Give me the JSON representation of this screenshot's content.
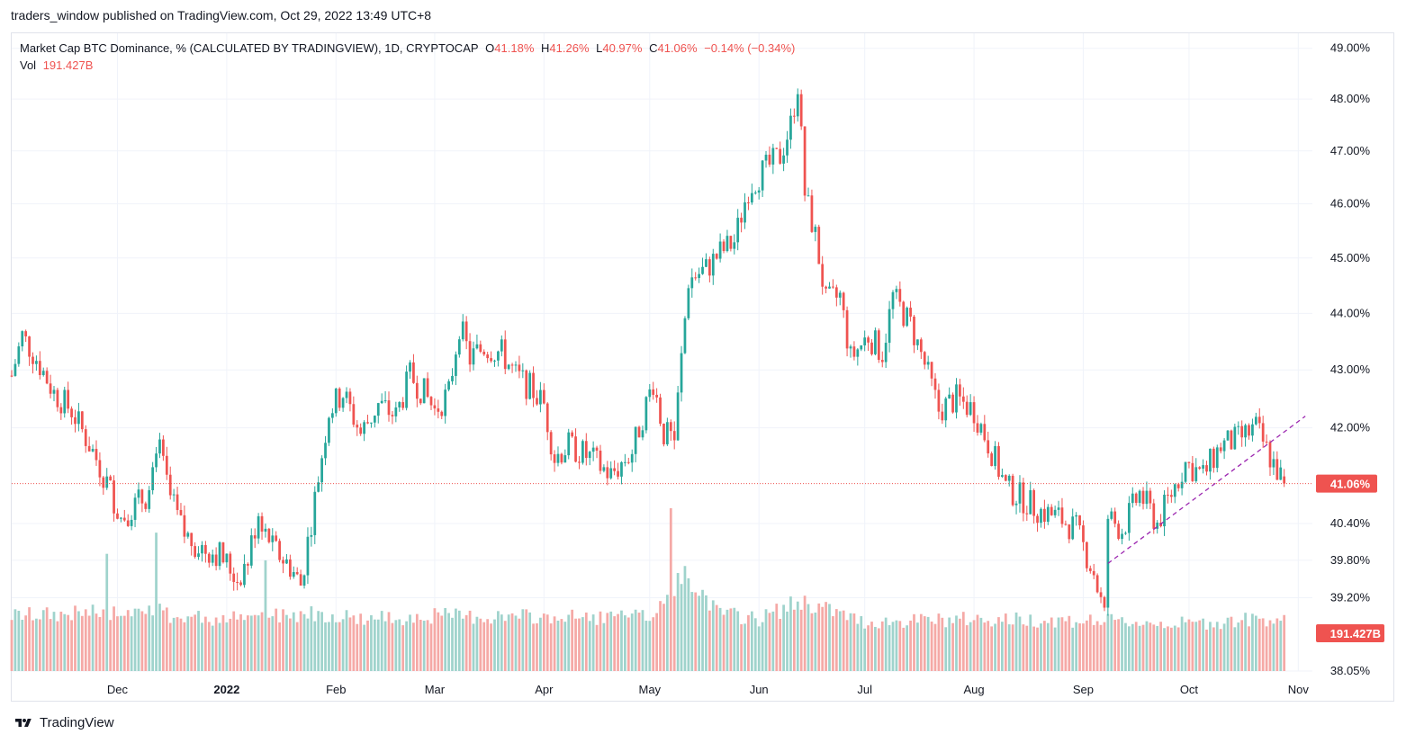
{
  "header": {
    "published": "traders_window published on TradingView.com, Oct 29, 2022 13:49 UTC+8"
  },
  "legend": {
    "symbol": "Market Cap BTC Dominance, % (CALCULATED BY TRADINGVIEW), 1D, CRYPTOCAP",
    "o_label": "O",
    "o_value": "41.18%",
    "h_label": "H",
    "h_value": "41.26%",
    "l_label": "L",
    "l_value": "40.97%",
    "c_label": "C",
    "c_value": "41.06%",
    "change": "−0.14% (−0.34%)",
    "vol_label": "Vol",
    "vol_value": "191.427B"
  },
  "brand": {
    "name": "TradingView"
  },
  "colors": {
    "up": "#26a69a",
    "down": "#ef5350",
    "up_vol": "#9fd3cc",
    "down_vol": "#f5a9a6",
    "trend": "#9c27b0",
    "grid": "#f0f3fa"
  },
  "chart_data": {
    "type": "candlestick",
    "y_scale": "log",
    "ylim": [
      38.05,
      49.3
    ],
    "y_ticks": [
      {
        "value": 49.0,
        "label": "49.00%"
      },
      {
        "value": 48.0,
        "label": "48.00%"
      },
      {
        "value": 47.0,
        "label": "47.00%"
      },
      {
        "value": 46.0,
        "label": "46.00%"
      },
      {
        "value": 45.0,
        "label": "45.00%"
      },
      {
        "value": 44.0,
        "label": "44.00%"
      },
      {
        "value": 43.0,
        "label": "43.00%"
      },
      {
        "value": 42.0,
        "label": "42.00%"
      },
      {
        "value": 40.4,
        "label": "40.40%"
      },
      {
        "value": 39.8,
        "label": "39.80%"
      },
      {
        "value": 39.2,
        "label": "39.20%"
      },
      {
        "value": 38.05,
        "label": "38.05%"
      }
    ],
    "x_ticks": [
      {
        "label": "Dec",
        "date": "2021-12-01",
        "bold": false
      },
      {
        "label": "2022",
        "date": "2022-01-01",
        "bold": true
      },
      {
        "label": "Feb",
        "date": "2022-02-01",
        "bold": false
      },
      {
        "label": "Mar",
        "date": "2022-03-01",
        "bold": false
      },
      {
        "label": "Apr",
        "date": "2022-04-01",
        "bold": false
      },
      {
        "label": "May",
        "date": "2022-05-01",
        "bold": false
      },
      {
        "label": "Jun",
        "date": "2022-06-01",
        "bold": false
      },
      {
        "label": "Jul",
        "date": "2022-07-01",
        "bold": false
      },
      {
        "label": "Aug",
        "date": "2022-08-01",
        "bold": false
      },
      {
        "label": "Sep",
        "date": "2022-09-01",
        "bold": false
      },
      {
        "label": "Oct",
        "date": "2022-10-01",
        "bold": false
      },
      {
        "label": "Nov",
        "date": "2022-11-01",
        "bold": false
      }
    ],
    "close_path": [
      [
        "2021-11-01",
        42.9
      ],
      [
        "2021-11-04",
        43.6
      ],
      [
        "2021-11-08",
        43.2
      ],
      [
        "2021-11-13",
        42.6
      ],
      [
        "2021-11-18",
        42.3
      ],
      [
        "2021-11-24",
        41.6
      ],
      [
        "2021-11-28",
        41.1
      ],
      [
        "2021-12-02",
        40.5
      ],
      [
        "2021-12-06",
        40.7
      ],
      [
        "2021-12-10",
        40.9
      ],
      [
        "2021-12-13",
        41.6
      ],
      [
        "2021-12-16",
        40.8
      ],
      [
        "2021-12-20",
        40.2
      ],
      [
        "2021-12-25",
        40.0
      ],
      [
        "2021-12-30",
        39.9
      ],
      [
        "2022-01-04",
        39.5
      ],
      [
        "2022-01-07",
        39.8
      ],
      [
        "2022-01-10",
        40.6
      ],
      [
        "2022-01-14",
        40.0
      ],
      [
        "2022-01-19",
        39.7
      ],
      [
        "2022-01-22",
        39.4
      ],
      [
        "2022-01-26",
        40.8
      ],
      [
        "2022-01-30",
        42.3
      ],
      [
        "2022-02-03",
        42.6
      ],
      [
        "2022-02-08",
        41.9
      ],
      [
        "2022-02-13",
        42.4
      ],
      [
        "2022-02-18",
        42.2
      ],
      [
        "2022-02-22",
        42.9
      ],
      [
        "2022-02-26",
        42.6
      ],
      [
        "2022-03-01",
        42.3
      ],
      [
        "2022-03-05",
        42.6
      ],
      [
        "2022-03-08",
        43.8
      ],
      [
        "2022-03-11",
        43.2
      ],
      [
        "2022-03-15",
        43.4
      ],
      [
        "2022-03-20",
        43.3
      ],
      [
        "2022-03-24",
        42.9
      ],
      [
        "2022-03-28",
        42.7
      ],
      [
        "2022-04-01",
        42.4
      ],
      [
        "2022-04-04",
        41.5
      ],
      [
        "2022-04-08",
        41.7
      ],
      [
        "2022-04-14",
        41.5
      ],
      [
        "2022-04-20",
        41.2
      ],
      [
        "2022-04-26",
        41.6
      ],
      [
        "2022-04-30",
        42.4
      ],
      [
        "2022-05-02",
        42.8
      ],
      [
        "2022-05-05",
        41.9
      ],
      [
        "2022-05-08",
        41.8
      ],
      [
        "2022-05-10",
        43.2
      ],
      [
        "2022-05-12",
        44.6
      ],
      [
        "2022-05-17",
        44.8
      ],
      [
        "2022-05-21",
        45.1
      ],
      [
        "2022-05-25",
        45.3
      ],
      [
        "2022-05-29",
        46.3
      ],
      [
        "2022-06-02",
        46.6
      ],
      [
        "2022-06-07",
        46.9
      ],
      [
        "2022-06-10",
        47.5
      ],
      [
        "2022-06-12",
        48.3
      ],
      [
        "2022-06-14",
        46.2
      ],
      [
        "2022-06-17",
        45.4
      ],
      [
        "2022-06-20",
        44.2
      ],
      [
        "2022-06-24",
        44.3
      ],
      [
        "2022-06-27",
        43.2
      ],
      [
        "2022-07-02",
        43.6
      ],
      [
        "2022-07-06",
        43.3
      ],
      [
        "2022-07-09",
        44.3
      ],
      [
        "2022-07-14",
        43.8
      ],
      [
        "2022-07-18",
        43.1
      ],
      [
        "2022-07-22",
        42.3
      ],
      [
        "2022-07-27",
        42.5
      ],
      [
        "2022-08-01",
        42.3
      ],
      [
        "2022-08-06",
        41.6
      ],
      [
        "2022-08-10",
        41.0
      ],
      [
        "2022-08-15",
        40.8
      ],
      [
        "2022-08-20",
        40.6
      ],
      [
        "2022-08-25",
        40.5
      ],
      [
        "2022-08-30",
        40.3
      ],
      [
        "2022-09-04",
        39.6
      ],
      [
        "2022-09-07",
        38.9
      ],
      [
        "2022-09-08",
        40.5
      ],
      [
        "2022-09-12",
        40.3
      ],
      [
        "2022-09-17",
        40.9
      ],
      [
        "2022-09-22",
        40.4
      ],
      [
        "2022-09-26",
        40.9
      ],
      [
        "2022-09-30",
        41.4
      ],
      [
        "2022-10-05",
        41.2
      ],
      [
        "2022-10-10",
        41.7
      ],
      [
        "2022-10-15",
        41.8
      ],
      [
        "2022-10-20",
        42.0
      ],
      [
        "2022-10-24",
        41.5
      ],
      [
        "2022-10-28",
        41.06
      ]
    ],
    "volume_path": [
      [
        "2021-11-01",
        0.34
      ],
      [
        "2021-12-01",
        0.36
      ],
      [
        "2021-12-08",
        0.42
      ],
      [
        "2021-12-15",
        0.34
      ],
      [
        "2022-01-01",
        0.32
      ],
      [
        "2022-01-25",
        0.36
      ],
      [
        "2022-02-10",
        0.32
      ],
      [
        "2022-03-01",
        0.34
      ],
      [
        "2022-04-01",
        0.33
      ],
      [
        "2022-05-01",
        0.33
      ],
      [
        "2022-05-07",
        0.5
      ],
      [
        "2022-05-12",
        0.6
      ],
      [
        "2022-05-20",
        0.36
      ],
      [
        "2022-06-01",
        0.32
      ],
      [
        "2022-06-13",
        0.43
      ],
      [
        "2022-07-01",
        0.3
      ],
      [
        "2022-08-01",
        0.32
      ],
      [
        "2022-09-01",
        0.31
      ],
      [
        "2022-10-01",
        0.29
      ],
      [
        "2022-10-28",
        0.33
      ]
    ],
    "volume_spikes": [
      [
        "2021-11-28",
        0.72
      ],
      [
        "2021-12-12",
        0.85
      ],
      [
        "2022-01-12",
        0.68
      ],
      [
        "2022-05-07",
        1.0
      ]
    ],
    "trendline": {
      "from": [
        "2022-09-08",
        39.75
      ],
      "to": [
        "2022-11-03",
        42.2
      ]
    },
    "last_price": {
      "value": 41.06,
      "label": "41.06%"
    },
    "last_volume": {
      "label": "191.427B"
    }
  }
}
